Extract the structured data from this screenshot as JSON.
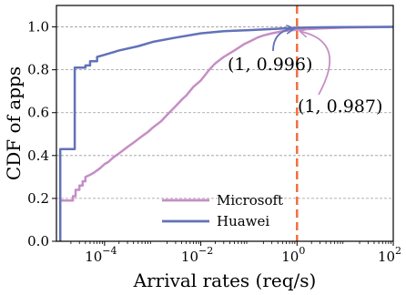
{
  "chart_data": {
    "type": "line",
    "xscale": "log",
    "xlim": [
      1e-05,
      100
    ],
    "ylim": [
      0,
      1.1
    ],
    "xlabel": "Arrival rates (req/s)",
    "ylabel": "CDF of apps",
    "xticks": [
      {
        "value": 0.0001,
        "base": "10",
        "exp": "−4"
      },
      {
        "value": 0.01,
        "base": "10",
        "exp": "−2"
      },
      {
        "value": 1,
        "base": "10",
        "exp": "0"
      },
      {
        "value": 100,
        "base": "10",
        "exp": "2"
      }
    ],
    "yticks": [
      {
        "value": 0.0,
        "label": "0.0"
      },
      {
        "value": 0.2,
        "label": "0.2"
      },
      {
        "value": 0.4,
        "label": "0.4"
      },
      {
        "value": 0.6,
        "label": "0.6"
      },
      {
        "value": 0.8,
        "label": "0.8"
      },
      {
        "value": 1.0,
        "label": "1.0"
      }
    ],
    "grid": "horizontal-dashed",
    "legend_position": "bottom-center",
    "series": [
      {
        "name": "Microsoft",
        "color": "#c58ec5",
        "points": [
          [
            1.2e-05,
            0.0
          ],
          [
            1.2e-05,
            0.19
          ],
          [
            2.2e-05,
            0.19
          ],
          [
            2.2e-05,
            0.21
          ],
          [
            2.5e-05,
            0.21
          ],
          [
            2.5e-05,
            0.24
          ],
          [
            3e-05,
            0.24
          ],
          [
            3e-05,
            0.26
          ],
          [
            3.5e-05,
            0.26
          ],
          [
            3.5e-05,
            0.28
          ],
          [
            4e-05,
            0.28
          ],
          [
            4e-05,
            0.3
          ],
          [
            5e-05,
            0.31
          ],
          [
            6e-05,
            0.32
          ],
          [
            8e-05,
            0.34
          ],
          [
            0.0001,
            0.36
          ],
          [
            0.00012,
            0.37
          ],
          [
            0.00015,
            0.39
          ],
          [
            0.0002,
            0.41
          ],
          [
            0.0003,
            0.44
          ],
          [
            0.0004,
            0.46
          ],
          [
            0.0006,
            0.49
          ],
          [
            0.0008,
            0.51
          ],
          [
            0.001,
            0.53
          ],
          [
            0.0015,
            0.56
          ],
          [
            0.002,
            0.59
          ],
          [
            0.003,
            0.63
          ],
          [
            0.004,
            0.66
          ],
          [
            0.005,
            0.68
          ],
          [
            0.007,
            0.72
          ],
          [
            0.01,
            0.75
          ],
          [
            0.015,
            0.8
          ],
          [
            0.02,
            0.83
          ],
          [
            0.03,
            0.86
          ],
          [
            0.05,
            0.89
          ],
          [
            0.08,
            0.92
          ],
          [
            0.1,
            0.93
          ],
          [
            0.15,
            0.95
          ],
          [
            0.2,
            0.96
          ],
          [
            0.3,
            0.97
          ],
          [
            0.5,
            0.98
          ],
          [
            1,
            0.987
          ],
          [
            3,
            0.993
          ],
          [
            10,
            0.997
          ],
          [
            100,
            1.0
          ]
        ]
      },
      {
        "name": "Huawei",
        "color": "#6272b8",
        "points": [
          [
            1.2e-05,
            0.0
          ],
          [
            1.2e-05,
            0.43
          ],
          [
            2.4e-05,
            0.43
          ],
          [
            2.4e-05,
            0.81
          ],
          [
            4e-05,
            0.81
          ],
          [
            4e-05,
            0.82
          ],
          [
            5e-05,
            0.82
          ],
          [
            5e-05,
            0.84
          ],
          [
            7e-05,
            0.84
          ],
          [
            7e-05,
            0.86
          ],
          [
            0.0001,
            0.87
          ],
          [
            0.0002,
            0.89
          ],
          [
            0.0005,
            0.91
          ],
          [
            0.001,
            0.93
          ],
          [
            0.003,
            0.95
          ],
          [
            0.01,
            0.97
          ],
          [
            0.03,
            0.98
          ],
          [
            0.1,
            0.985
          ],
          [
            0.3,
            0.99
          ],
          [
            1,
            0.996
          ],
          [
            3,
            0.998
          ],
          [
            10,
            0.999
          ],
          [
            100,
            1.0
          ]
        ]
      }
    ],
    "reference_line": {
      "x": 1,
      "color": "#f07040",
      "style": "dashed"
    },
    "annotations": [
      {
        "text": "(1, 0.996)",
        "point": [
          1,
          0.996
        ]
      },
      {
        "text": "(1, 0.987)",
        "point": [
          1,
          0.987
        ]
      }
    ]
  }
}
